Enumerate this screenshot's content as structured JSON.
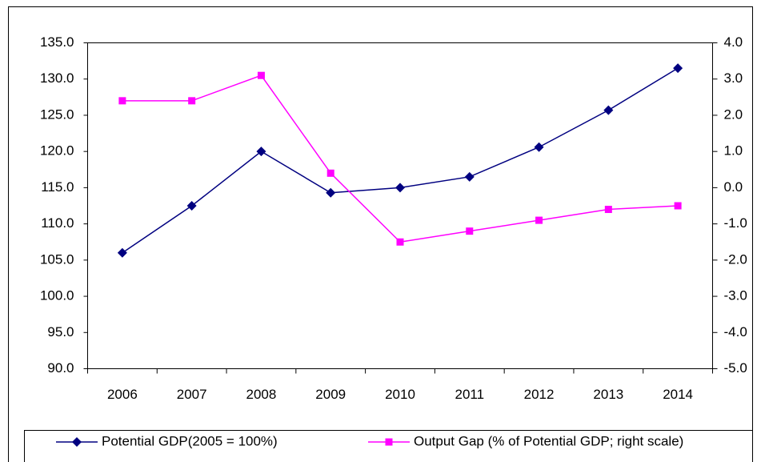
{
  "chart_data": {
    "type": "line",
    "categories": [
      "2006",
      "2007",
      "2008",
      "2009",
      "2010",
      "2011",
      "2012",
      "2013",
      "2014"
    ],
    "series": [
      {
        "name": "Potential GDP(2005 = 100%)",
        "color": "#000080",
        "marker": "diamond",
        "values": [
          106.0,
          112.5,
          120.0,
          114.3,
          115.0,
          116.5,
          120.6,
          125.7,
          131.5
        ]
      },
      {
        "name": "Output Gap (% of Potential GDP; right scale)",
        "color": "#ff00ff",
        "marker": "square",
        "axis": "y2",
        "values": [
          2.4,
          2.4,
          3.1,
          0.4,
          -1.5,
          -1.2,
          -0.9,
          -0.6,
          -0.5
        ]
      }
    ],
    "ylim": [
      90,
      135
    ],
    "yticks": [
      {
        "value": 90,
        "label": "90.0"
      },
      {
        "value": 95,
        "label": "95.0"
      },
      {
        "value": 100,
        "label": "100.0"
      },
      {
        "value": 105,
        "label": "105.0"
      },
      {
        "value": 110,
        "label": "110.0"
      },
      {
        "value": 115,
        "label": "115.0"
      },
      {
        "value": 120,
        "label": "120.0"
      },
      {
        "value": 125,
        "label": "125.0"
      },
      {
        "value": 130,
        "label": "130.0"
      },
      {
        "value": 135,
        "label": "135.0"
      }
    ],
    "y2lim": [
      -5,
      4
    ],
    "y2ticks": [
      {
        "value": -5,
        "label": "-5.0"
      },
      {
        "value": -4,
        "label": "-4.0"
      },
      {
        "value": -3,
        "label": "-3.0"
      },
      {
        "value": -2,
        "label": "-2.0"
      },
      {
        "value": -1,
        "label": "-1.0"
      },
      {
        "value": 0,
        "label": "0.0"
      },
      {
        "value": 1,
        "label": "1.0"
      },
      {
        "value": 2,
        "label": "2.0"
      },
      {
        "value": 3,
        "label": "3.0"
      },
      {
        "value": 4,
        "label": "4.0"
      }
    ],
    "legend": "bottom"
  }
}
